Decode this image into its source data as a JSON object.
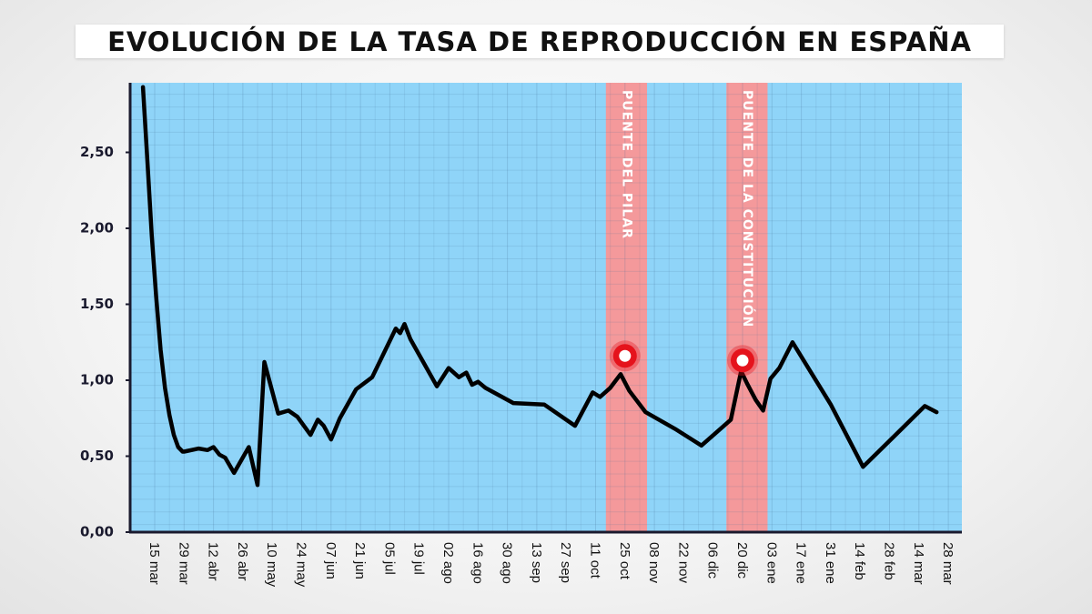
{
  "chart_data": {
    "type": "line",
    "title": "EVOLUCIÓN DE LA TASA DE REPRODUCCIÓN EN ESPAÑA",
    "xlabel": "",
    "ylabel": "",
    "ylim": [
      0,
      2.95
    ],
    "y_ticks": [
      0,
      0.5,
      1,
      1.5,
      2,
      2.5
    ],
    "y_tick_labels": [
      "0,00",
      "0,50",
      "1,00",
      "1,50",
      "2,00",
      "2,50"
    ],
    "x_tick_labels": [
      "15 mar",
      "29 mar",
      "12 abr",
      "26 abr",
      "10 may",
      "24 may",
      "07 jun",
      "21 jun",
      "05 jul",
      "19 jul",
      "02 ago",
      "16 ago",
      "30 ago",
      "13 sep",
      "27 sep",
      "11 oct",
      "25 oct",
      "08 nov",
      "22 nov",
      "06 dic",
      "20 dic",
      "03 ene",
      "17 ene",
      "31 ene",
      "14 feb",
      "28 feb",
      "14 mar",
      "28 mar"
    ],
    "grid": true,
    "colors": {
      "background": "#8fd4f8",
      "band": "#f4999b",
      "line": "#000000",
      "marker_ring": "#e5131c",
      "marker_fill": "#ffffff",
      "axis": "#1a1a2e"
    },
    "bands": [
      {
        "label": "PUENTE DEL PILAR",
        "start_tick": 15.35,
        "end_tick": 16.75
      },
      {
        "label": "PUENTE DE LA CONSTITUCIÓN",
        "start_tick": 19.45,
        "end_tick": 20.85
      }
    ],
    "markers": [
      {
        "x_tick": 16.0,
        "y": 1.16
      },
      {
        "x_tick": 20.0,
        "y": 1.13
      }
    ],
    "series": [
      {
        "x": [
          -0.4,
          -0.25,
          -0.1,
          0.05,
          0.2,
          0.35,
          0.5,
          0.65,
          0.8,
          0.95,
          1.0,
          1.5,
          1.8,
          2.0,
          2.2,
          2.4,
          2.7,
          3.2,
          3.5,
          3.73,
          4.2,
          4.55,
          4.85,
          5.3,
          5.55,
          5.75,
          6.0,
          6.3,
          6.85,
          7.4,
          8.2,
          8.35,
          8.5,
          8.7,
          9.6,
          10.0,
          10.35,
          10.6,
          10.8,
          11.0,
          11.25,
          12.2,
          13.25,
          14.3,
          14.9,
          15.15,
          15.5,
          15.85,
          16.15,
          16.7,
          17.7,
          18.6,
          19.6,
          19.95,
          20.15,
          20.45,
          20.7,
          20.95,
          21.25,
          21.7,
          23.0,
          24.1,
          25.1,
          26.2,
          26.6
        ],
        "y": [
          2.93,
          2.45,
          1.95,
          1.55,
          1.2,
          0.95,
          0.77,
          0.64,
          0.56,
          0.53,
          0.53,
          0.55,
          0.54,
          0.56,
          0.51,
          0.49,
          0.39,
          0.56,
          0.31,
          1.12,
          0.78,
          0.8,
          0.76,
          0.64,
          0.74,
          0.7,
          0.61,
          0.75,
          0.94,
          1.02,
          1.34,
          1.31,
          1.37,
          1.27,
          0.96,
          1.08,
          1.02,
          1.05,
          0.97,
          0.99,
          0.95,
          0.85,
          0.84,
          0.7,
          0.92,
          0.89,
          0.95,
          1.04,
          0.93,
          0.79,
          0.68,
          0.57,
          0.74,
          1.06,
          0.98,
          0.87,
          0.8,
          1.01,
          1.08,
          1.25,
          0.84,
          0.43,
          0.62,
          0.83,
          0.79
        ]
      }
    ]
  }
}
